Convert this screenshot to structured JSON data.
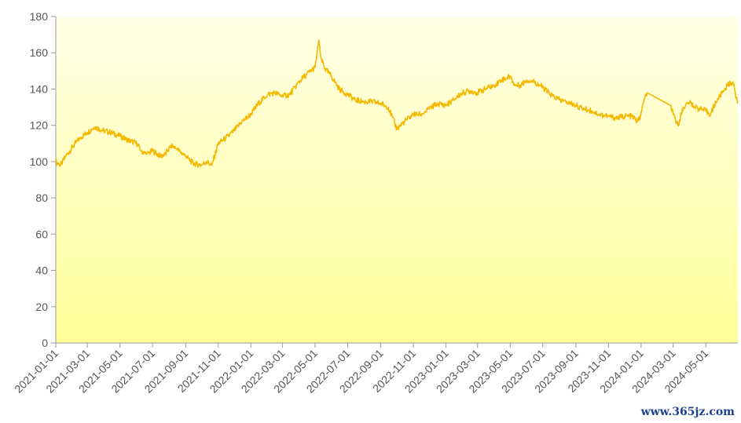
{
  "chart_data": {
    "type": "line",
    "title": "",
    "xlabel": "",
    "ylabel": "",
    "x_range": [
      "2021-01-01",
      "2024-06-30"
    ],
    "ylim": [
      0,
      180
    ],
    "y_ticks": [
      0,
      20,
      40,
      60,
      80,
      100,
      120,
      140,
      160,
      180
    ],
    "x_ticks": [
      "2021-01-01",
      "2021-03-01",
      "2021-05-01",
      "2021-07-01",
      "2021-09-01",
      "2021-11-01",
      "2022-01-01",
      "2022-03-01",
      "2022-05-01",
      "2022-07-01",
      "2022-09-01",
      "2022-11-01",
      "2023-01-01",
      "2023-03-01",
      "2023-05-01",
      "2023-07-01",
      "2023-09-01",
      "2023-11-01",
      "2024-01-01",
      "2024-03-01",
      "2024-05-01"
    ],
    "grid": false,
    "legend": "none",
    "area_fill": {
      "top": "#ffffe6",
      "bottom": "#ffff99"
    },
    "series": [
      {
        "color": "#f5b800",
        "points": [
          [
            "2021-01-01",
            100
          ],
          [
            "2021-01-10",
            98
          ],
          [
            "2021-01-20",
            103
          ],
          [
            "2021-02-01",
            108
          ],
          [
            "2021-02-15",
            113
          ],
          [
            "2021-03-01",
            116
          ],
          [
            "2021-03-15",
            119
          ],
          [
            "2021-04-01",
            117
          ],
          [
            "2021-04-15",
            116
          ],
          [
            "2021-05-01",
            114
          ],
          [
            "2021-05-15",
            112
          ],
          [
            "2021-06-01",
            110
          ],
          [
            "2021-06-10",
            106
          ],
          [
            "2021-06-20",
            104
          ],
          [
            "2021-07-01",
            106
          ],
          [
            "2021-07-15",
            103
          ],
          [
            "2021-07-25",
            104
          ],
          [
            "2021-08-05",
            109
          ],
          [
            "2021-08-15",
            107
          ],
          [
            "2021-09-01",
            103
          ],
          [
            "2021-09-15",
            99
          ],
          [
            "2021-10-01",
            98
          ],
          [
            "2021-10-10",
            100
          ],
          [
            "2021-10-20",
            98
          ],
          [
            "2021-11-01",
            110
          ],
          [
            "2021-11-15",
            113
          ],
          [
            "2021-12-01",
            117
          ],
          [
            "2021-12-15",
            122
          ],
          [
            "2022-01-01",
            126
          ],
          [
            "2022-01-15",
            132
          ],
          [
            "2022-02-01",
            137
          ],
          [
            "2022-02-15",
            138
          ],
          [
            "2022-03-01",
            136
          ],
          [
            "2022-03-15",
            137
          ],
          [
            "2022-04-01",
            144
          ],
          [
            "2022-04-15",
            148
          ],
          [
            "2022-05-01",
            152
          ],
          [
            "2022-05-05",
            160
          ],
          [
            "2022-05-08",
            167
          ],
          [
            "2022-05-12",
            157
          ],
          [
            "2022-05-20",
            151
          ],
          [
            "2022-06-01",
            147
          ],
          [
            "2022-06-15",
            140
          ],
          [
            "2022-07-01",
            137
          ],
          [
            "2022-07-15",
            134
          ],
          [
            "2022-08-01",
            133
          ],
          [
            "2022-08-15",
            133
          ],
          [
            "2022-09-01",
            132
          ],
          [
            "2022-09-15",
            130
          ],
          [
            "2022-10-01",
            118
          ],
          [
            "2022-10-15",
            122
          ],
          [
            "2022-11-01",
            126
          ],
          [
            "2022-11-15",
            126
          ],
          [
            "2022-12-01",
            129
          ],
          [
            "2022-12-15",
            132
          ],
          [
            "2023-01-01",
            131
          ],
          [
            "2023-01-15",
            134
          ],
          [
            "2023-02-01",
            138
          ],
          [
            "2023-02-15",
            139
          ],
          [
            "2023-03-01",
            138
          ],
          [
            "2023-03-15",
            140
          ],
          [
            "2023-04-01",
            142
          ],
          [
            "2023-04-15",
            145
          ],
          [
            "2023-05-01",
            147
          ],
          [
            "2023-05-10",
            142
          ],
          [
            "2023-05-20",
            142
          ],
          [
            "2023-06-01",
            145
          ],
          [
            "2023-06-15",
            144
          ],
          [
            "2023-07-01",
            141
          ],
          [
            "2023-07-15",
            137
          ],
          [
            "2023-08-01",
            134
          ],
          [
            "2023-08-15",
            133
          ],
          [
            "2023-09-01",
            131
          ],
          [
            "2023-09-15",
            129
          ],
          [
            "2023-10-01",
            128
          ],
          [
            "2023-10-15",
            126
          ],
          [
            "2023-11-01",
            125
          ],
          [
            "2023-11-15",
            124
          ],
          [
            "2023-12-01",
            125
          ],
          [
            "2023-12-15",
            125
          ],
          [
            "2023-12-25",
            122
          ],
          [
            "2023-12-31",
            125
          ],
          [
            "2024-01-05",
            132
          ],
          [
            "2024-01-12",
            138
          ],
          [
            "2024-02-25",
            131
          ],
          [
            "2024-03-01",
            126
          ],
          [
            "2024-03-10",
            120
          ],
          [
            "2024-03-20",
            130
          ],
          [
            "2024-04-01",
            133
          ],
          [
            "2024-04-10",
            130
          ],
          [
            "2024-04-20",
            129
          ],
          [
            "2024-05-01",
            128
          ],
          [
            "2024-05-10",
            126
          ],
          [
            "2024-05-20",
            133
          ],
          [
            "2024-06-01",
            138
          ],
          [
            "2024-06-10",
            142
          ],
          [
            "2024-06-20",
            144
          ],
          [
            "2024-06-30",
            132
          ]
        ]
      }
    ]
  },
  "watermark": "www.365jz.com"
}
